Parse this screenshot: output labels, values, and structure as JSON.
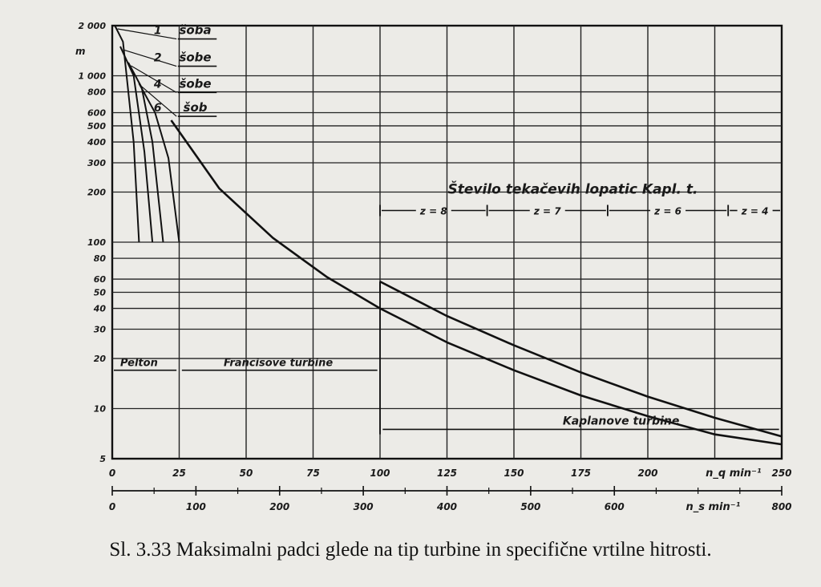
{
  "caption": "Sl. 3.33 Maksimalni padci glede na tip turbine in specifične vrtilne hitrosti.",
  "chart_data": {
    "type": "line",
    "y_unit": "m",
    "yscale": "log",
    "ylim": [
      5,
      2000
    ],
    "y_ticks": [
      {
        "value": 2000,
        "label": "2 000"
      },
      {
        "value": 1000,
        "label": "1 000"
      },
      {
        "value": 800,
        "label": "800"
      },
      {
        "value": 600,
        "label": "600"
      },
      {
        "value": 500,
        "label": "500"
      },
      {
        "value": 400,
        "label": "400"
      },
      {
        "value": 300,
        "label": "300"
      },
      {
        "value": 200,
        "label": "200"
      },
      {
        "value": 100,
        "label": "100"
      },
      {
        "value": 80,
        "label": "80"
      },
      {
        "value": 60,
        "label": "60"
      },
      {
        "value": 50,
        "label": "50"
      },
      {
        "value": 40,
        "label": "40"
      },
      {
        "value": 30,
        "label": "30"
      },
      {
        "value": 20,
        "label": "20"
      },
      {
        "value": 10,
        "label": "10"
      },
      {
        "value": 5,
        "label": "5"
      }
    ],
    "x_primary": {
      "label": "n_q  min⁻¹",
      "range": [
        0,
        250
      ],
      "ticks": [
        "0",
        "25",
        "50",
        "75",
        "100",
        "125",
        "150",
        "175",
        "200",
        "250"
      ]
    },
    "x_secondary": {
      "label": "n_s  min⁻¹",
      "range": [
        0,
        800
      ],
      "ticks": [
        "0",
        "100",
        "200",
        "300",
        "400",
        "500",
        "600",
        "800"
      ]
    },
    "pelton_jets": [
      {
        "count": "1",
        "label": "šoba",
        "points": [
          [
            1,
            2000
          ],
          [
            4,
            1600
          ],
          [
            8,
            400
          ],
          [
            10,
            100
          ]
        ]
      },
      {
        "count": "2",
        "label": "šobe",
        "points": [
          [
            3,
            1500
          ],
          [
            8,
            1000
          ],
          [
            12,
            350
          ],
          [
            15,
            100
          ]
        ]
      },
      {
        "count": "4",
        "label": "šobe",
        "points": [
          [
            6,
            1200
          ],
          [
            11,
            850
          ],
          [
            15,
            400
          ],
          [
            19,
            100
          ]
        ]
      },
      {
        "count": "6",
        "label": "šob",
        "points": [
          [
            10,
            900
          ],
          [
            16,
            600
          ],
          [
            21,
            320
          ],
          [
            25,
            100
          ]
        ]
      }
    ],
    "series": [
      {
        "name": "Francisove turbine",
        "points": [
          [
            22,
            540
          ],
          [
            40,
            210
          ],
          [
            60,
            106
          ],
          [
            80,
            62
          ],
          [
            100,
            40
          ],
          [
            125,
            25
          ],
          [
            150,
            17
          ],
          [
            175,
            12
          ],
          [
            200,
            9
          ],
          [
            225,
            7
          ],
          [
            250,
            6.1
          ]
        ]
      },
      {
        "name": "Kaplanove turbine",
        "points": [
          [
            100,
            58
          ],
          [
            125,
            36
          ],
          [
            150,
            24
          ],
          [
            175,
            16.5
          ],
          [
            200,
            11.8
          ],
          [
            225,
            8.8
          ],
          [
            250,
            6.8
          ]
        ]
      }
    ],
    "regions": [
      {
        "name": "Pelton",
        "from": 0,
        "to": 25
      },
      {
        "name": "Francisove turbine",
        "from": 25,
        "to": 100
      },
      {
        "name": "Kaplanove turbine",
        "from": 100,
        "to": 250
      }
    ],
    "runner_blades": {
      "title": "Število tekačevih lopatic Kapl. t.",
      "intervals": [
        {
          "label": "z = 8",
          "from": 100,
          "to": 140
        },
        {
          "label": "z = 7",
          "from": 140,
          "to": 185
        },
        {
          "label": "z = 6",
          "from": 185,
          "to": 230
        },
        {
          "label": "z = 4",
          "from": 230,
          "to": 250
        }
      ]
    }
  }
}
